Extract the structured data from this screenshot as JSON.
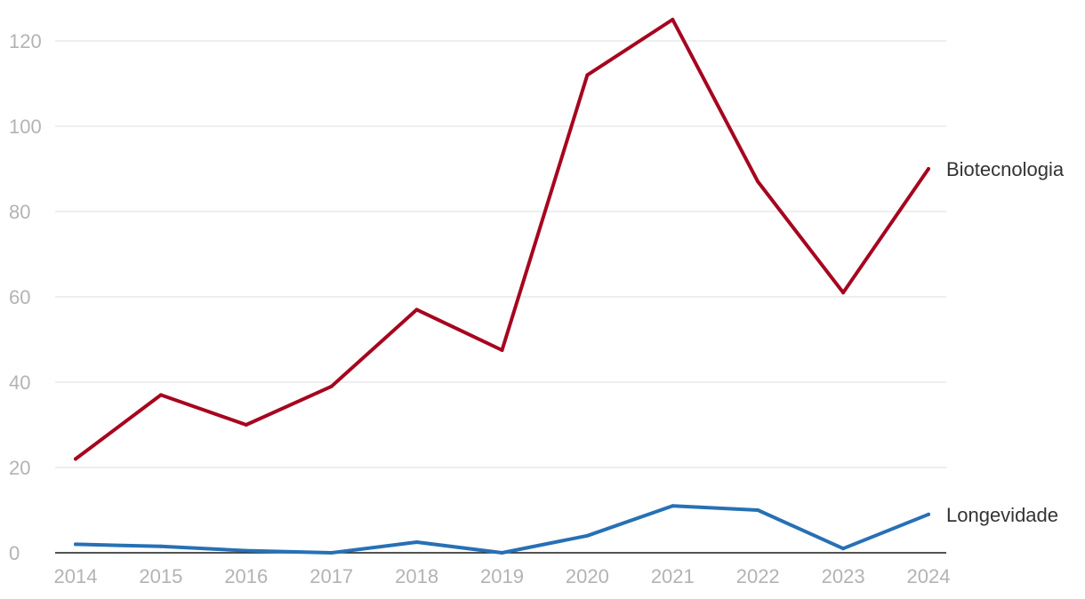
{
  "chart_data": {
    "type": "line",
    "title": "",
    "xlabel": "",
    "ylabel": "",
    "x": [
      "2014",
      "2015",
      "2016",
      "2017",
      "2018",
      "2019",
      "2020",
      "2021",
      "2022",
      "2023",
      "2024"
    ],
    "ylim": [
      0,
      125
    ],
    "yticks": [
      "0",
      "20",
      "40",
      "60",
      "80",
      "100",
      "120"
    ],
    "grid": true,
    "legend": "direct-labels-right",
    "series": [
      {
        "name": "Biotecnologia",
        "color": "#a6051f",
        "values": [
          22,
          37,
          30,
          39,
          57,
          47.5,
          112,
          125,
          87,
          61,
          90
        ]
      },
      {
        "name": "Longevidade",
        "color": "#2770b5",
        "values": [
          2,
          1.5,
          0.5,
          0,
          2.5,
          0,
          4,
          11,
          10,
          1,
          9
        ]
      }
    ]
  }
}
